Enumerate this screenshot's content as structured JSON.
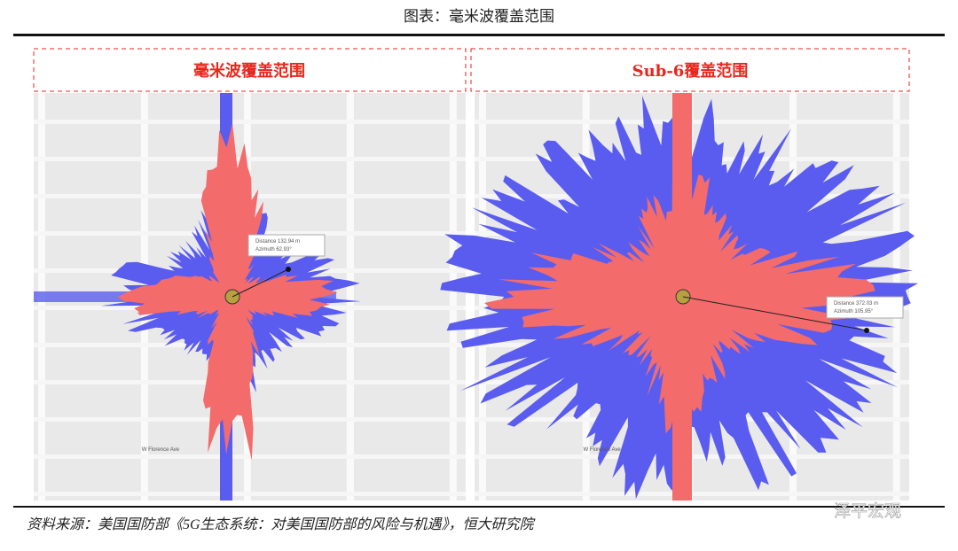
{
  "header": {
    "title": "图表：毫米波覆盖范围"
  },
  "panels": [
    {
      "title": "毫米波覆盖范围",
      "street": "W Florence Ave",
      "info": [
        "Distance 132.94 m",
        "Azimuth 62.93°"
      ]
    },
    {
      "title": "Sub-6覆盖范围",
      "street": "W Florence Ave",
      "info": [
        "Distance 372.03 m",
        "Azimuth 105.95°"
      ]
    }
  ],
  "footer": {
    "source": "资料来源：美国国防部《5G生态系统：对美国国防部的风险与机遇》，恒大研究院",
    "watermark": "泽平宏观"
  }
}
